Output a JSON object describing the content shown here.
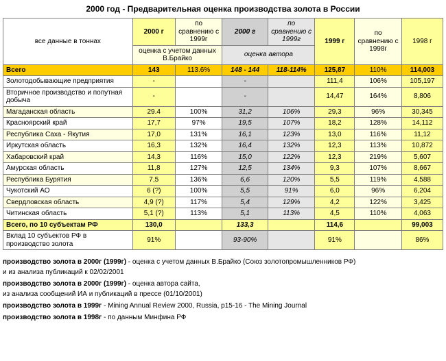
{
  "page": {
    "title": "2000 год   -   Предварительная оценка производства золота в России",
    "border_color": "#808080",
    "colors": {
      "white": "#ffffff",
      "lt_yellow": "#ffffe1",
      "md_yellow": "#ffff99",
      "dk_yellow": "#ffcc00",
      "grey": "#e6e6e6",
      "dk_grey": "#d0d0d0"
    }
  },
  "head": {
    "r1": {
      "c0": "все  данные   в  тоннах",
      "c1": "2000 г",
      "c2": "по сравнению с 1999г",
      "c3": "2000 г",
      "c4": "по сравнению с 1999г",
      "c5": "1999 г",
      "c6": "по сравнению с 1998г",
      "c7": "1998 г"
    },
    "r2": {
      "c1": "оценка с учетом данных В.Брайко",
      "c2": "оценка автора"
    }
  },
  "rows": [
    {
      "band": "dk_yellow",
      "bold": true,
      "label": "Всего",
      "v": [
        "143",
        "113.6%",
        "148 - 144",
        "118-114%",
        "125,87",
        "110%",
        "114,003"
      ]
    },
    {
      "band": "white",
      "label": "Золотодобывающие предприятия",
      "v": [
        "-",
        "",
        "-",
        "",
        "111,4",
        "106%",
        "105,197"
      ]
    },
    {
      "band": "white",
      "label": "Вторичное производство и попутная добыча",
      "v": [
        "-",
        "",
        "-",
        "",
        "14,47",
        "164%",
        "8,806"
      ]
    },
    {
      "band": "lt_yellow",
      "label": "Магаданская область",
      "v": [
        "29.4",
        "100%",
        "31,2",
        "106%",
        "29,3",
        "96%",
        "30,345"
      ]
    },
    {
      "band": "white",
      "label": "Красноярский край",
      "v": [
        "17,7",
        "97%",
        "19,5",
        "107%",
        "18,2",
        "128%",
        "14,112"
      ]
    },
    {
      "band": "lt_yellow",
      "label": "Республика Саха -  Якутия",
      "v": [
        "17,0",
        "131%",
        "16,1",
        "123%",
        "13,0",
        "116%",
        "11,12"
      ]
    },
    {
      "band": "white",
      "label": "Иркутская область",
      "v": [
        "16,3",
        "132%",
        "16,4",
        "132%",
        "12,3",
        "113%",
        "10,872"
      ]
    },
    {
      "band": "lt_yellow",
      "label": "Хабаровский край",
      "v": [
        "14,3",
        "116%",
        "15,0",
        "122%",
        "12,3",
        "219%",
        "5,607"
      ]
    },
    {
      "band": "white",
      "label": "Амурская область",
      "v": [
        "11,8",
        "127%",
        "12,5",
        "134%",
        "9,3",
        "107%",
        "8,667"
      ]
    },
    {
      "band": "lt_yellow",
      "label": "Республика Бурятия",
      "v": [
        "7,5",
        "136%",
        "6,6",
        "120%",
        "5,5",
        "119%",
        "4,588"
      ]
    },
    {
      "band": "white",
      "label": "Чукотский АО",
      "v": [
        "6 (?)",
        "100%",
        "5,5",
        "91%",
        "6,0",
        "96%",
        "6,204"
      ]
    },
    {
      "band": "lt_yellow",
      "label": "Свердловская область",
      "v": [
        "4,9 (?)",
        "117%",
        "5,4",
        "129%",
        "4,2",
        "122%",
        "3,425"
      ]
    },
    {
      "band": "white",
      "label": "Читинская область",
      "v": [
        "5,1 (?)",
        "113%",
        "5,1",
        "113%",
        "4,5",
        "110%",
        "4,063"
      ]
    },
    {
      "band": "md_yellow",
      "bold": true,
      "label": "Всего, по 10 субъектам РФ",
      "v": [
        "130,0",
        "",
        "133,3",
        "",
        "114,6",
        "",
        "99,003"
      ]
    },
    {
      "band": "white",
      "label": "Вклад 10 субъектов РФ в производство золота",
      "v": [
        "91%",
        "",
        "93-90%",
        "",
        "91%",
        "",
        "86%"
      ]
    }
  ],
  "col_bg": [
    "md_yellow",
    "white",
    "dk_grey",
    "grey",
    "md_yellow",
    "lt_yellow",
    "md_yellow"
  ],
  "footnotes": [
    {
      "b": "производство золота в 2000г (1999г)",
      "t": "  - оценка с учетом данных В.Брайко  (Союз золотопромышленников РФ)\n                                                                    и  из  анализа публикаций  к  02/02/2001"
    },
    {
      "b": "производство золота в 2000г (1999г)",
      "t": "  - оценка автора сайта,\n                                                                    из анализа сообщений ИА и публикаций в прессе   (01/10/2001)"
    },
    {
      "b": "производство золота в 1999г",
      "t": " -  Mining Annual Review 2000,   Russia,  p15-16  -  The  Mining  Journal"
    },
    {
      "b": "производство золота в 1998г",
      "t": " - по данным Минфина РФ"
    }
  ]
}
